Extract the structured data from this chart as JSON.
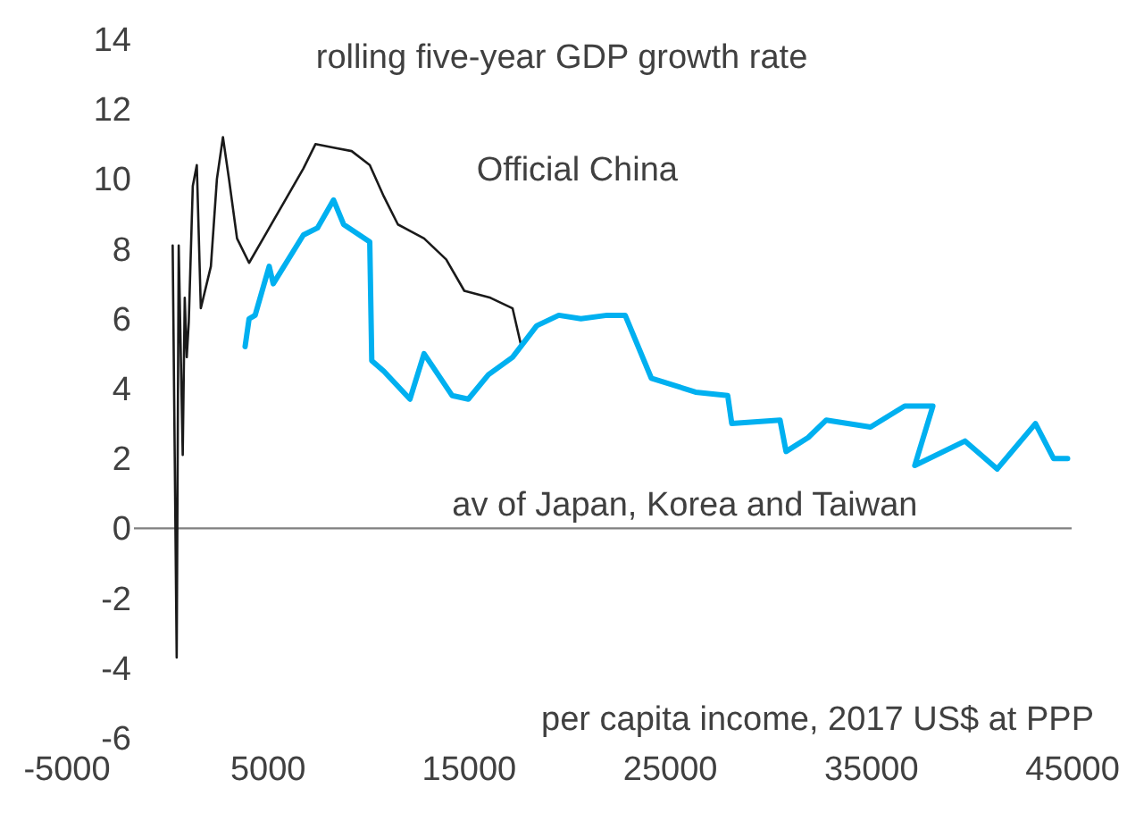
{
  "chart_data": {
    "type": "line",
    "title": "rolling five-year GDP growth rate",
    "xlabel": "per capita income, 2017 US$ at PPP",
    "xlim": [
      -5000,
      45000
    ],
    "xticks": [
      -5000,
      5000,
      15000,
      25000,
      35000,
      45000
    ],
    "ylim": [
      -6,
      14
    ],
    "yticks": [
      -6,
      -4,
      -2,
      0,
      2,
      4,
      6,
      8,
      10,
      12,
      14
    ],
    "grid": false,
    "marker": "none",
    "line_style": "solid",
    "ref_lines": [
      {
        "axis": "y",
        "value": 0,
        "color": "#808080"
      }
    ],
    "series": [
      {
        "name": "Official China",
        "color": "#1a1a1a",
        "x": [
          300,
          500,
          600,
          800,
          900,
          1000,
          1100,
          1300,
          1500,
          1700,
          2200,
          2500,
          2800,
          3100,
          3500,
          4100,
          5000,
          5900,
          6800,
          7400,
          8300,
          9200,
          10100,
          10800,
          11500,
          12800,
          13900,
          14800,
          16100,
          17200,
          17600
        ],
        "values": [
          8.1,
          -3.7,
          8.1,
          2.1,
          6.6,
          4.9,
          5.9,
          9.8,
          10.4,
          6.3,
          7.5,
          10.0,
          11.2,
          10.0,
          8.3,
          7.6,
          8.5,
          9.4,
          10.3,
          11.0,
          10.9,
          10.8,
          10.4,
          9.5,
          8.7,
          8.3,
          7.7,
          6.8,
          6.6,
          6.3,
          5.3
        ]
      },
      {
        "name": "av of Japan, Korea and Taiwan",
        "color": "#00b0f0",
        "x": [
          3900,
          4100,
          4400,
          5100,
          5300,
          6800,
          7500,
          8300,
          8800,
          10100,
          10200,
          10800,
          12100,
          12800,
          13500,
          14200,
          15000,
          16000,
          17200,
          18400,
          19500,
          20600,
          21900,
          22800,
          24100,
          26300,
          27900,
          28100,
          30500,
          30800,
          31900,
          32800,
          35000,
          36700,
          38100,
          37200,
          39700,
          41300,
          43200,
          44100,
          44800
        ],
        "values": [
          5.2,
          6.0,
          6.1,
          7.5,
          7.0,
          8.4,
          8.6,
          9.4,
          8.7,
          8.2,
          4.8,
          4.5,
          3.7,
          5.0,
          4.4,
          3.8,
          3.7,
          4.4,
          4.9,
          5.8,
          6.1,
          6.0,
          6.1,
          6.1,
          4.3,
          3.9,
          3.8,
          3.0,
          3.1,
          2.2,
          2.6,
          3.1,
          2.9,
          3.5,
          3.5,
          1.8,
          2.5,
          1.7,
          3.0,
          2.0,
          2.0
        ]
      }
    ]
  }
}
